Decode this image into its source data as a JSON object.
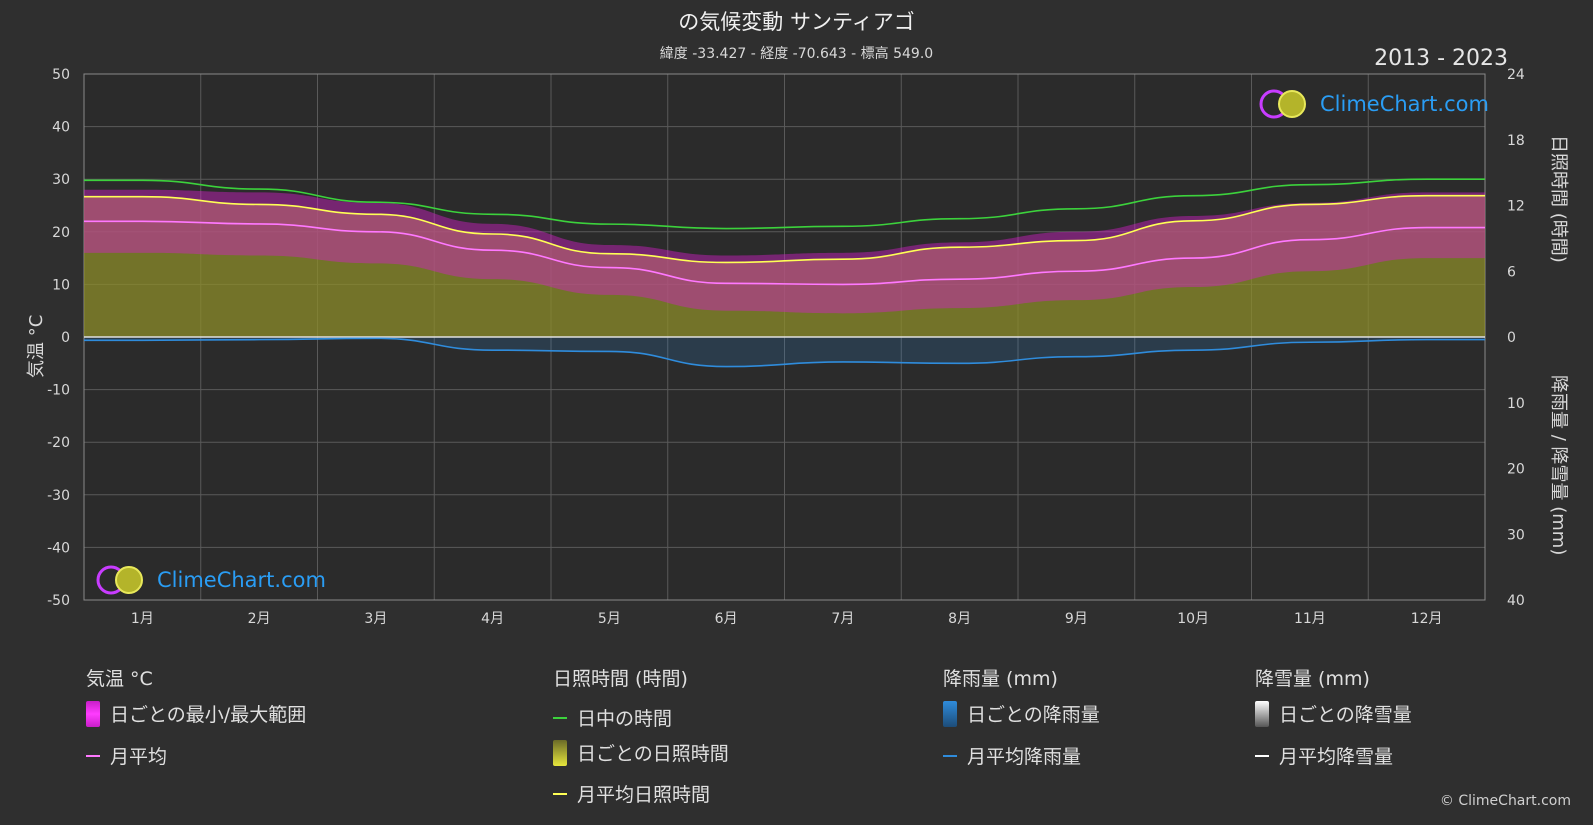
{
  "header": {
    "title": "の気候変動 サンティアゴ",
    "subtitle": "緯度 -33.427 - 経度 -70.643 - 標高 549.0",
    "years": "2013 - 2023"
  },
  "axes": {
    "left_title": "気温 °C",
    "right_top_title": "日照時間 (時間)",
    "right_bottom_title": "降雨量 / 降雪量 (mm)"
  },
  "logo": {
    "text": "ClimeChart.com"
  },
  "copyright": "© ClimeChart.com",
  "legend": {
    "temperature": {
      "heading": "気温 °C",
      "items": [
        "日ごとの最小/最大範囲",
        "月平均"
      ]
    },
    "sunshine": {
      "heading": "日照時間 (時間)",
      "items": [
        "日中の時間",
        "日ごとの日照時間",
        "月平均日照時間"
      ]
    },
    "rain": {
      "heading": "降雨量 (mm)",
      "items": [
        "日ごとの降雨量",
        "月平均降雨量"
      ]
    },
    "snow": {
      "heading": "降雪量 (mm)",
      "items": [
        "日ごとの降雪量",
        "月平均降雪量"
      ]
    }
  },
  "colors": {
    "background": "#2f2f2f",
    "grid": "#5a5a5a",
    "daylight": "#3cd23c",
    "sunshine_avg": "#ffff55",
    "sunshine_fill": "#8c8c2a",
    "temp_range": "#d21ec8",
    "temp_avg": "#ff78ff",
    "rain": "#2f8cdc",
    "snow": "#ffffff",
    "logo": "#2a9df4"
  },
  "chart_data": {
    "type": "area",
    "months": [
      "1月",
      "2月",
      "3月",
      "4月",
      "5月",
      "6月",
      "7月",
      "8月",
      "9月",
      "10月",
      "11月",
      "12月"
    ],
    "left_axis": {
      "label": "気温 °C",
      "ylim": [
        -50,
        50
      ],
      "ticks": [
        50,
        40,
        30,
        20,
        10,
        0,
        -10,
        -20,
        -30,
        -40,
        -50
      ]
    },
    "right_axis_top": {
      "label": "日照時間 (時間)",
      "ylim": [
        0,
        24
      ],
      "ticks": [
        24,
        18,
        12,
        6,
        0
      ]
    },
    "right_axis_bottom": {
      "label": "降雨量 / 降雪量 (mm)",
      "ylim": [
        0,
        40
      ],
      "ticks": [
        0,
        10,
        20,
        30,
        40
      ]
    },
    "grid": true,
    "series": [
      {
        "name": "日中の時間",
        "unit": "hours",
        "values": [
          14.3,
          13.5,
          12.3,
          11.2,
          10.3,
          9.9,
          10.1,
          10.8,
          11.7,
          12.9,
          13.9,
          14.4
        ]
      },
      {
        "name": "月平均日照時間",
        "unit": "hours",
        "values": [
          12.8,
          12.1,
          11.2,
          9.4,
          7.6,
          6.8,
          7.1,
          8.2,
          8.8,
          10.6,
          12.1,
          12.9
        ]
      },
      {
        "name": "月平均",
        "unit": "°C",
        "values": [
          22.0,
          21.5,
          20.0,
          16.5,
          13.2,
          10.2,
          10.0,
          11.0,
          12.5,
          15.0,
          18.5,
          20.8
        ]
      },
      {
        "name": "日ごとの最小/最大範囲 (上限)",
        "unit": "°C",
        "values": [
          28,
          27.5,
          25.5,
          21.5,
          17.5,
          15.5,
          16,
          18,
          20,
          23,
          25.5,
          27.5
        ]
      },
      {
        "name": "日ごとの最小/最大範囲 (下限)",
        "unit": "°C",
        "values": [
          16,
          15.5,
          14,
          11,
          8,
          5,
          4.5,
          5.5,
          7,
          9.5,
          12.5,
          15
        ]
      },
      {
        "name": "月平均降雨量",
        "unit": "mm",
        "values": [
          0.5,
          0.4,
          0.2,
          2.0,
          2.2,
          4.5,
          3.8,
          4.0,
          3.0,
          2.0,
          0.8,
          0.4
        ]
      },
      {
        "name": "月平均降雪量",
        "unit": "mm",
        "values": [
          0,
          0,
          0,
          0,
          0,
          0,
          0,
          0,
          0,
          0,
          0,
          0
        ]
      }
    ]
  }
}
